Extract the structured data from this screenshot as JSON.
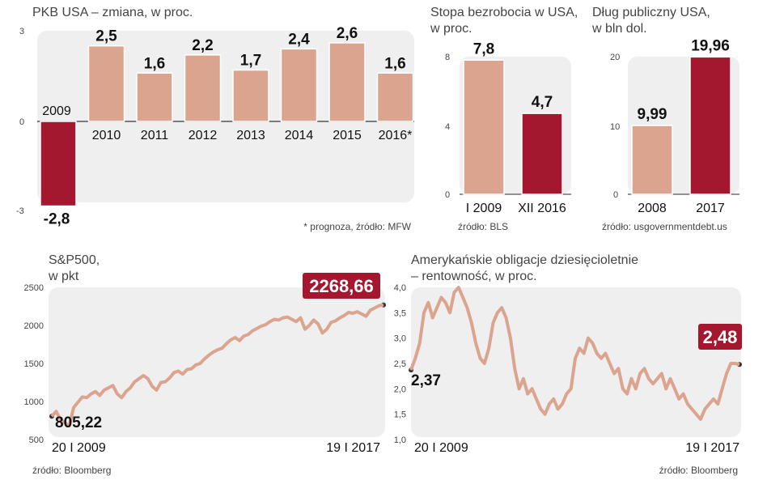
{
  "colors": {
    "panel": "#efefef",
    "light": "#dba48e",
    "dark": "#a3172f",
    "line": "#dba48e",
    "axis": "#555555"
  },
  "chart_data": [
    {
      "id": "gdp",
      "type": "bar",
      "title": "PKB USA – zmiana, w proc.",
      "categories": [
        "2009",
        "2010",
        "2011",
        "2012",
        "2013",
        "2014",
        "2015",
        "2016*"
      ],
      "values": [
        -2.8,
        2.5,
        1.6,
        2.2,
        1.7,
        2.4,
        2.6,
        1.6
      ],
      "value_labels": [
        "-2,8",
        "2,5",
        "1,6",
        "2,2",
        "1,7",
        "2,4",
        "2,6",
        "1,6"
      ],
      "highlight": [
        0
      ],
      "ylim": [
        -3,
        3
      ],
      "ticks": [
        "-3",
        "0",
        "3"
      ],
      "note": "* prognoza, źródło: MFW"
    },
    {
      "id": "unemp",
      "type": "bar",
      "title_lines": [
        "Stopa bezrobocia w USA,",
        "w proc."
      ],
      "categories": [
        "I 2009",
        "XII 2016"
      ],
      "values": [
        7.8,
        4.7
      ],
      "value_labels": [
        "7,8",
        "4,7"
      ],
      "highlight": [
        1
      ],
      "ylim": [
        0,
        8
      ],
      "ticks": [
        "0",
        "4",
        "8"
      ],
      "source": "źródło: BLS"
    },
    {
      "id": "debt",
      "type": "bar",
      "title_lines": [
        "Dług publiczny USA,",
        "w bln dol."
      ],
      "categories": [
        "2008",
        "2017"
      ],
      "values": [
        9.99,
        19.96
      ],
      "value_labels": [
        "9,99",
        "19,96"
      ],
      "highlight": [
        1
      ],
      "ylim": [
        0,
        20
      ],
      "ticks": [
        "0",
        "10",
        "20"
      ],
      "source": "źródło: usgovernmentdebt.us"
    },
    {
      "id": "sp500",
      "type": "line",
      "title_lines": [
        "S&P500,",
        "w pkt"
      ],
      "ylim": [
        500,
        2500
      ],
      "ticks": [
        "500",
        "1000",
        "1500",
        "2000",
        "2500"
      ],
      "x_start": "20 I 2009",
      "x_end": "19 I 2017",
      "start_value": 805.22,
      "start_label": "805,22",
      "end_value": 2268.66,
      "end_label": "2268,66",
      "series": [
        805,
        870,
        760,
        720,
        680,
        920,
        990,
        1060,
        1050,
        1100,
        1130,
        1080,
        1150,
        1180,
        1210,
        1100,
        1050,
        1130,
        1180,
        1260,
        1300,
        1340,
        1300,
        1200,
        1150,
        1250,
        1260,
        1310,
        1380,
        1400,
        1360,
        1420,
        1430,
        1480,
        1500,
        1560,
        1610,
        1650,
        1680,
        1700,
        1760,
        1810,
        1840,
        1800,
        1860,
        1880,
        1930,
        1960,
        1990,
        2010,
        2050,
        2080,
        2070,
        2100,
        2110,
        2080,
        2050,
        2100,
        1950,
        2000,
        2070,
        2020,
        1900,
        1950,
        2040,
        2060,
        2100,
        2130,
        2170,
        2160,
        2180,
        2150,
        2120,
        2200,
        2230,
        2260,
        2269
      ]
    },
    {
      "id": "bonds",
      "type": "line",
      "title_lines": [
        "Amerykańskie obligacje dziesięcioletnie",
        "– rentowność, w proc."
      ],
      "ylim": [
        1.0,
        4.0
      ],
      "ticks": [
        "1,0",
        "1,5",
        "2,0",
        "2,5",
        "3,0",
        "3,5",
        "4,0"
      ],
      "x_start": "20 I 2009",
      "x_end": "19 I 2017",
      "start_value": 2.37,
      "start_label": "2,37",
      "end_value": 2.48,
      "end_label": "2,48",
      "series": [
        2.37,
        2.6,
        2.9,
        3.5,
        3.7,
        3.4,
        3.6,
        3.8,
        3.7,
        3.5,
        3.9,
        4.0,
        3.8,
        3.6,
        3.3,
        2.9,
        2.6,
        2.5,
        2.8,
        3.3,
        3.5,
        3.6,
        3.4,
        3.0,
        2.4,
        2.0,
        2.2,
        1.9,
        2.0,
        1.8,
        1.6,
        1.5,
        1.7,
        1.8,
        1.6,
        1.7,
        1.9,
        2.0,
        2.6,
        2.8,
        2.7,
        3.0,
        2.9,
        2.7,
        2.6,
        2.7,
        2.5,
        2.3,
        2.4,
        2.0,
        1.9,
        2.2,
        2.0,
        2.3,
        2.4,
        2.2,
        2.1,
        2.2,
        2.3,
        2.0,
        2.2,
        2.0,
        1.8,
        1.9,
        1.7,
        1.6,
        1.5,
        1.4,
        1.6,
        1.7,
        1.8,
        1.7,
        2.0,
        2.3,
        2.5,
        2.5,
        2.48
      ]
    }
  ],
  "footer": {
    "bloomberg_left": "źródło: Bloomberg",
    "bloomberg_right": "źródło: Bloomberg"
  }
}
